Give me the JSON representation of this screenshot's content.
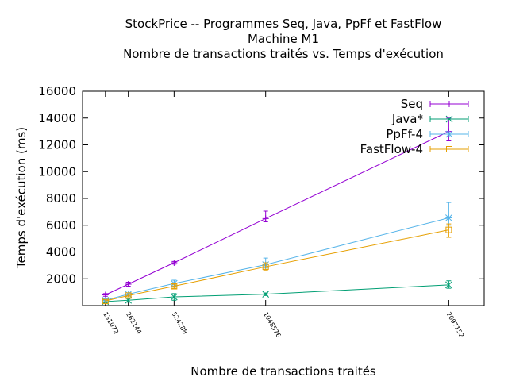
{
  "chart_data": {
    "type": "line",
    "title_lines": [
      "StockPrice -- Programmes Seq, Java, PpFf et FastFlow",
      "Machine M1",
      "Nombre de transactions traités vs. Temps d'exécution"
    ],
    "xlabel": "Nombre de transactions traités",
    "ylabel": "Temps d'exécution (ms)",
    "x": [
      131072,
      262144,
      524288,
      1048576,
      2097152
    ],
    "x_tick_labels": [
      "131072",
      "262144",
      "524288",
      "1048576",
      "2097152"
    ],
    "xlim": [
      0,
      2300000
    ],
    "ylim": [
      0,
      16000
    ],
    "y_ticks": [
      2000,
      4000,
      6000,
      8000,
      10000,
      12000,
      14000,
      16000
    ],
    "y_tick_labels": [
      "2000",
      "4000",
      "6000",
      "8000",
      "10000",
      "12000",
      "14000",
      "16000"
    ],
    "legend_position": "top-right",
    "grid": false,
    "series": [
      {
        "name": "Seq",
        "color": "#9400d3",
        "marker": "plus",
        "values": [
          800,
          1600,
          3200,
          6500,
          13000
        ],
        "err_low": [
          700,
          1450,
          3100,
          6250,
          12300
        ],
        "err_high": [
          900,
          1750,
          3300,
          7050,
          14000
        ]
      },
      {
        "name": "Java*",
        "color": "#009e73",
        "marker": "cross",
        "values": [
          300,
          400,
          650,
          850,
          1550
        ],
        "err_low": [
          200,
          250,
          400,
          750,
          1300
        ],
        "err_high": [
          400,
          550,
          900,
          950,
          1850
        ]
      },
      {
        "name": "PpFf-4",
        "color": "#56b4e9",
        "marker": "star",
        "values": [
          400,
          850,
          1650,
          3050,
          6550
        ],
        "err_low": [
          300,
          750,
          1450,
          2800,
          6000
        ],
        "err_high": [
          500,
          950,
          1900,
          3550,
          7700
        ]
      },
      {
        "name": "FastFlow-4",
        "color": "#e69f00",
        "marker": "square",
        "values": [
          350,
          750,
          1450,
          2900,
          5650
        ],
        "err_low": [
          250,
          650,
          1300,
          2650,
          5100
        ],
        "err_high": [
          450,
          850,
          1600,
          3200,
          6100
        ]
      }
    ]
  }
}
